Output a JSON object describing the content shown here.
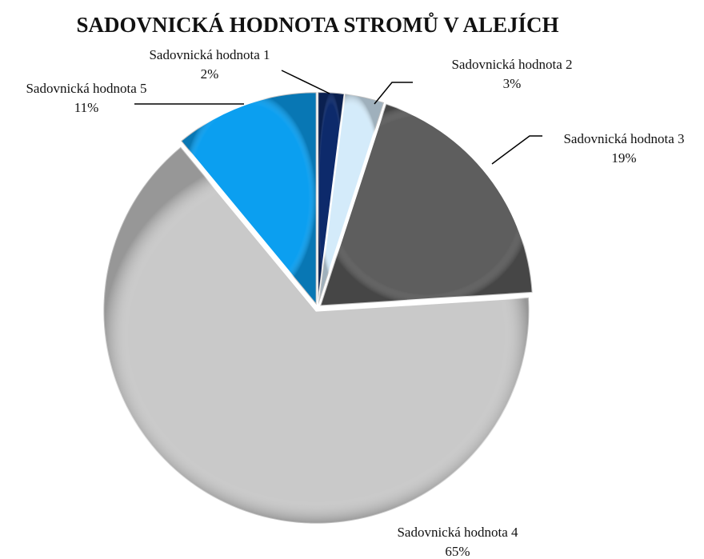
{
  "chart_data": {
    "type": "pie",
    "title": "SADOVNICKÁ HODNOTA STROMŮ V ALEJÍCH",
    "categories": [
      "Sadovnická hodnota 1",
      "Sadovnická hodnota 2",
      "Sadovnická hodnota 3",
      "Sadovnická hodnota 4",
      "Sadovnická hodnota 5"
    ],
    "values": [
      2,
      3,
      19,
      65,
      11
    ],
    "value_labels": [
      "2%",
      "3%",
      "19%",
      "65%",
      "11%"
    ],
    "colors": [
      "#0d2a6b",
      "#d4ebfa",
      "#5e5e5e",
      "#c9c9c9",
      "#0b9ff0"
    ]
  }
}
